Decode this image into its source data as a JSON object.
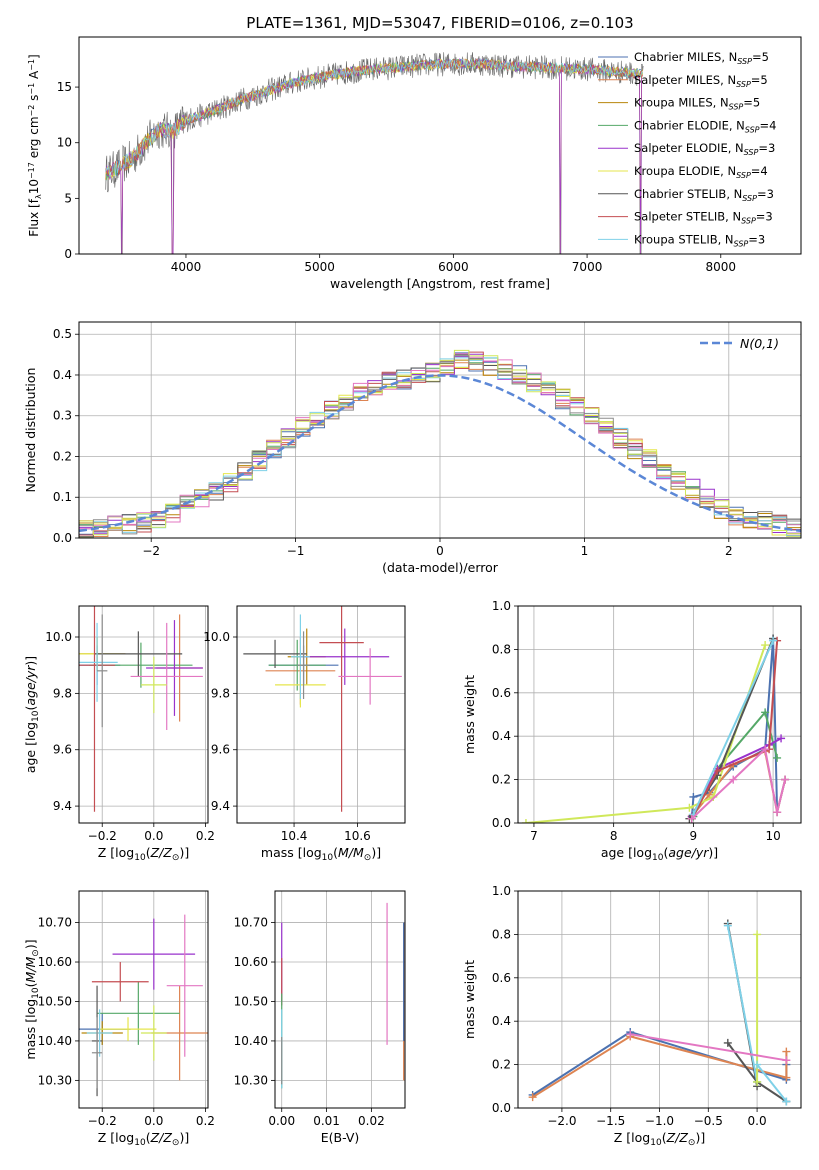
{
  "figure_title": "PLATE=1361, MJD=53047, FIBERID=0106, z=0.103",
  "colors": [
    "#4c72b0",
    "#dd8452",
    "#b8860b",
    "#55a868",
    "#9932cc",
    "#e6e64d",
    "#555555",
    "#c44e52",
    "#7fd1e8",
    "#e377c2",
    "#d0e85a",
    "#8c8c8c"
  ],
  "chart_data": [
    {
      "type": "line",
      "title": "PLATE=1361, MJD=53047, FIBERID=0106, z=0.103",
      "xlabel": "wavelength [Angstrom, rest frame]",
      "ylabel": "Flux [f_λ 10^-17 erg cm^-2 s^-1 A^-1]",
      "xlim": [
        3200,
        8600
      ],
      "ylim": [
        0,
        19.5
      ],
      "xticks": [
        4000,
        5000,
        6000,
        7000,
        8000
      ],
      "yticks": [
        0,
        5,
        10,
        15
      ],
      "legend_position": "right",
      "series": [
        {
          "name": "Chabrier MILES, N_SSP=5",
          "label_base": "Chabrier MILES, N",
          "label_n": "5",
          "color": "#4c72b0"
        },
        {
          "name": "Salpeter MILES, N_SSP=5",
          "label_base": "Salpeter MILES, N",
          "label_n": "5",
          "color": "#dd8452"
        },
        {
          "name": "Kroupa MILES, N_SSP=5",
          "label_base": "Kroupa MILES, N",
          "label_n": "5",
          "color": "#b8860b"
        },
        {
          "name": "Chabrier ELODIE, N_SSP=4",
          "label_base": "Chabrier ELODIE, N",
          "label_n": "4",
          "color": "#55a868"
        },
        {
          "name": "Salpeter ELODIE, N_SSP=3",
          "label_base": "Salpeter ELODIE, N",
          "label_n": "3",
          "color": "#9932cc"
        },
        {
          "name": "Kroupa ELODIE, N_SSP=4",
          "label_base": "Kroupa ELODIE, N",
          "label_n": "4",
          "color": "#e6e64d"
        },
        {
          "name": "Chabrier STELIB, N_SSP=3",
          "label_base": "Chabrier STELIB, N",
          "label_n": "3",
          "color": "#555555"
        },
        {
          "name": "Salpeter STELIB, N_SSP=3",
          "label_base": "Salpeter STELIB, N",
          "label_n": "3",
          "color": "#c44e52"
        },
        {
          "name": "Kroupa STELIB, N_SSP=3",
          "label_base": "Kroupa STELIB, N",
          "label_n": "3",
          "color": "#7fd1e8"
        }
      ],
      "spectrum_envelope": {
        "x": [
          3400,
          3500,
          3600,
          3700,
          3800,
          3900,
          4000,
          4200,
          4400,
          4600,
          4800,
          5000,
          5200,
          5400,
          5600,
          5800,
          6000,
          6200,
          6400,
          6600,
          6800,
          7000,
          7200,
          7400
        ],
        "y": [
          7.2,
          7.8,
          8.6,
          10.0,
          11.2,
          11.0,
          12.0,
          12.8,
          13.8,
          14.6,
          15.4,
          15.9,
          16.3,
          16.6,
          16.8,
          17.0,
          17.1,
          17.1,
          16.9,
          16.8,
          16.7,
          16.6,
          16.4,
          16.2
        ]
      },
      "dropouts": [
        3520,
        3900,
        6800,
        7400
      ]
    },
    {
      "type": "line",
      "subtype": "step-histogram",
      "xlabel": "(data-model)/error",
      "ylabel": "Normed distribution",
      "xlim": [
        -2.5,
        2.5
      ],
      "ylim": [
        0,
        0.53
      ],
      "xticks": [
        -2,
        -1,
        0,
        1,
        2
      ],
      "yticks": [
        0.0,
        0.1,
        0.2,
        0.3,
        0.4,
        0.5
      ],
      "grid": true,
      "legend_position": "top-right",
      "bin_width": 0.1,
      "series": [
        {
          "name": "N(0,1)",
          "style": "dashed",
          "color": "#5b87d6",
          "kind": "gaussian",
          "mean": 0,
          "sigma": 1
        }
      ],
      "histogram_base_profile": {
        "x": [
          -2.5,
          -2.0,
          -1.5,
          -1.0,
          -0.5,
          0.0,
          0.15,
          0.5,
          1.0,
          1.5,
          2.0,
          2.5
        ],
        "y": [
          0.02,
          0.04,
          0.12,
          0.26,
          0.37,
          0.41,
          0.44,
          0.41,
          0.31,
          0.18,
          0.06,
          0.02
        ]
      }
    },
    {
      "type": "scatter",
      "subtype": "errorbar",
      "xlabel": "Z [log10(Z/Z⊙)]",
      "ylabel": "age [log10(age/yr)]",
      "xlim": [
        -0.29,
        0.21
      ],
      "ylim": [
        9.34,
        10.11
      ],
      "xticks": [
        -0.2,
        0.0,
        0.2
      ],
      "yticks": [
        9.4,
        9.6,
        9.8,
        10.0
      ],
      "grid": true,
      "points": [
        {
          "x": -0.22,
          "y": 9.9,
          "xerr": 0.09,
          "yerr": 0.07,
          "color": "#4c72b0"
        },
        {
          "x": 0.1,
          "y": 9.89,
          "xerr": 0.09,
          "yerr": 0.19,
          "color": "#dd8452"
        },
        {
          "x": -0.22,
          "y": 9.94,
          "xerr": 0.11,
          "yerr": 0.06,
          "color": "#b8860b"
        },
        {
          "x": -0.05,
          "y": 9.9,
          "xerr": 0.2,
          "yerr": 0.08,
          "color": "#55a868"
        },
        {
          "x": 0.08,
          "y": 9.89,
          "xerr": 0.11,
          "yerr": 0.17,
          "color": "#9932cc"
        },
        {
          "x": -0.22,
          "y": 9.94,
          "xerr": 0.09,
          "yerr": 0.06,
          "color": "#e6e64d"
        },
        {
          "x": -0.06,
          "y": 9.94,
          "xerr": 0.17,
          "yerr": 0.08,
          "color": "#555555"
        },
        {
          "x": -0.23,
          "y": 9.9,
          "xerr": 0.08,
          "yerr": 0.52,
          "color": "#c44e52"
        },
        {
          "x": -0.22,
          "y": 9.91,
          "xerr": 0.08,
          "yerr": 0.14,
          "color": "#7fd1e8"
        },
        {
          "x": 0.05,
          "y": 9.86,
          "xerr": 0.14,
          "yerr": 0.19,
          "color": "#e377c2"
        },
        {
          "x": 0.0,
          "y": 9.83,
          "xerr": 0.05,
          "yerr": 0.1,
          "color": "#d0e85a"
        },
        {
          "x": -0.2,
          "y": 9.88,
          "xerr": 0.02,
          "yerr": 0.2,
          "color": "#8c8c8c"
        }
      ]
    },
    {
      "type": "scatter",
      "subtype": "errorbar",
      "xlabel": "mass [log10(M/M⊙)]",
      "ylabel": "",
      "xlim": [
        10.22,
        10.75
      ],
      "ylim": [
        9.34,
        10.11
      ],
      "xticks": [
        10.4,
        10.6
      ],
      "yticks": [
        9.4,
        9.6,
        9.8,
        10.0
      ],
      "grid": true,
      "points": [
        {
          "x": 10.43,
          "y": 9.9,
          "xerr": 0.11,
          "yerr": 0.07,
          "color": "#4c72b0"
        },
        {
          "x": 10.42,
          "y": 9.88,
          "xerr": 0.11,
          "yerr": 0.12,
          "color": "#dd8452"
        },
        {
          "x": 10.44,
          "y": 9.93,
          "xerr": 0.06,
          "yerr": 0.1,
          "color": "#b8860b"
        },
        {
          "x": 10.41,
          "y": 9.9,
          "xerr": 0.09,
          "yerr": 0.09,
          "color": "#55a868"
        },
        {
          "x": 10.56,
          "y": 9.93,
          "xerr": 0.14,
          "yerr": 0.1,
          "color": "#9932cc"
        },
        {
          "x": 10.42,
          "y": 9.83,
          "xerr": 0.08,
          "yerr": 0.08,
          "color": "#e6e64d"
        },
        {
          "x": 10.34,
          "y": 9.94,
          "xerr": 0.1,
          "yerr": 0.05,
          "color": "#555555"
        },
        {
          "x": 10.55,
          "y": 9.98,
          "xerr": 0.07,
          "yerr": 0.6,
          "color": "#c44e52"
        },
        {
          "x": 10.42,
          "y": 9.93,
          "xerr": 0.03,
          "yerr": 0.15,
          "color": "#7fd1e8"
        },
        {
          "x": 10.64,
          "y": 9.86,
          "xerr": 0.1,
          "yerr": 0.1,
          "color": "#e377c2"
        },
        {
          "x": 10.43,
          "y": 9.9,
          "xerr": 0.02,
          "yerr": 0.12,
          "color": "#8c8c8c"
        }
      ]
    },
    {
      "type": "line",
      "xlabel": "age [log10(age/yr)]",
      "ylabel": "mass weight",
      "xlim": [
        6.8,
        10.35
      ],
      "ylim": [
        0,
        1
      ],
      "xticks": [
        7,
        8,
        9,
        10
      ],
      "yticks": [
        0.0,
        0.2,
        0.4,
        0.6,
        0.8,
        1.0
      ],
      "grid": true,
      "series": [
        {
          "x": [
            8.98,
            9.0,
            9.2,
            9.5,
            9.9,
            10.0,
            10.05,
            10.15
          ],
          "y": [
            0.02,
            0.12,
            0.14,
            0.26,
            0.34,
            0.85,
            0.05,
            0.2
          ],
          "color": "#4c72b0"
        },
        {
          "x": [
            8.98,
            9.2,
            9.5,
            9.9,
            10.05,
            10.15
          ],
          "y": [
            0.03,
            0.13,
            0.27,
            0.33,
            0.05,
            0.2
          ],
          "color": "#dd8452"
        },
        {
          "x": [
            9.0,
            9.3,
            9.9,
            10.05
          ],
          "y": [
            0.03,
            0.25,
            0.51,
            0.3
          ],
          "color": "#55a868"
        },
        {
          "x": [
            8.98,
            9.3,
            9.95,
            10.1
          ],
          "y": [
            0.03,
            0.25,
            0.36,
            0.39
          ],
          "color": "#9932cc"
        },
        {
          "x": [
            6.9,
            8.95,
            9.25,
            9.9
          ],
          "y": [
            0.0,
            0.07,
            0.12,
            0.82
          ],
          "color": "#d0e85a"
        },
        {
          "x": [
            8.95,
            9.3,
            10.0
          ],
          "y": [
            0.02,
            0.22,
            0.85
          ],
          "color": "#555555"
        },
        {
          "x": [
            8.98,
            9.3,
            9.95,
            10.05
          ],
          "y": [
            0.02,
            0.24,
            0.34,
            0.84
          ],
          "color": "#c44e52"
        },
        {
          "x": [
            9.0,
            10.0
          ],
          "y": [
            0.04,
            0.84
          ],
          "color": "#7fd1e8"
        },
        {
          "x": [
            8.98,
            9.5,
            9.9,
            10.05,
            10.15
          ],
          "y": [
            0.02,
            0.2,
            0.34,
            0.05,
            0.2
          ],
          "color": "#e377c2"
        }
      ]
    },
    {
      "type": "scatter",
      "subtype": "errorbar",
      "xlabel": "Z [log10(Z/Z⊙)]",
      "ylabel": "mass [log10(M/M⊙)]",
      "xlim": [
        -0.29,
        0.21
      ],
      "ylim": [
        10.23,
        10.78
      ],
      "xticks": [
        -0.2,
        0.0,
        0.2
      ],
      "yticks": [
        10.3,
        10.4,
        10.5,
        10.6,
        10.7
      ],
      "grid": true,
      "points": [
        {
          "x": -0.2,
          "y": 10.43,
          "xerr": 0.11,
          "yerr": 0.04,
          "color": "#4c72b0"
        },
        {
          "x": 0.1,
          "y": 10.42,
          "xerr": 0.11,
          "yerr": 0.12,
          "color": "#dd8452"
        },
        {
          "x": -0.2,
          "y": 10.42,
          "xerr": 0.08,
          "yerr": 0.03,
          "color": "#b8860b"
        },
        {
          "x": -0.06,
          "y": 10.47,
          "xerr": 0.16,
          "yerr": 0.08,
          "color": "#55a868"
        },
        {
          "x": 0.0,
          "y": 10.62,
          "xerr": 0.16,
          "yerr": 0.09,
          "color": "#9932cc"
        },
        {
          "x": -0.1,
          "y": 10.43,
          "xerr": 0.11,
          "yerr": 0.03,
          "color": "#e6e64d"
        },
        {
          "x": -0.22,
          "y": 10.4,
          "xerr": 0.02,
          "yerr": 0.14,
          "color": "#555555"
        },
        {
          "x": -0.13,
          "y": 10.55,
          "xerr": 0.11,
          "yerr": 0.05,
          "color": "#c44e52"
        },
        {
          "x": -0.21,
          "y": 10.42,
          "xerr": 0.05,
          "yerr": 0.06,
          "color": "#7fd1e8"
        },
        {
          "x": 0.12,
          "y": 10.54,
          "xerr": 0.07,
          "yerr": 0.18,
          "color": "#e377c2"
        },
        {
          "x": 0.0,
          "y": 10.42,
          "xerr": 0.05,
          "yerr": 0.07,
          "color": "#d0e85a"
        },
        {
          "x": -0.22,
          "y": 10.37,
          "xerr": 0.02,
          "yerr": 0.09,
          "color": "#8c8c8c"
        }
      ]
    },
    {
      "type": "scatter",
      "subtype": "errorbar",
      "xlabel": "E(B-V)",
      "ylabel": "",
      "xlim": [
        -0.0015,
        0.0275
      ],
      "ylim": [
        10.23,
        10.78
      ],
      "xticks": [
        0.0,
        0.01,
        0.02
      ],
      "yticks": [
        10.3,
        10.4,
        10.5,
        10.6,
        10.7
      ],
      "grid": true,
      "points": [
        {
          "x": 0.0,
          "y": 10.6,
          "yerr": 0.1,
          "color": "#9932cc"
        },
        {
          "x": 0.0,
          "y": 10.55,
          "yerr": 0.06,
          "color": "#c44e52"
        },
        {
          "x": 0.0,
          "y": 10.4,
          "yerr": 0.12,
          "color": "#55a868"
        },
        {
          "x": 0.0,
          "y": 10.38,
          "yerr": 0.1,
          "color": "#7fd1e8"
        },
        {
          "x": 0.0,
          "y": 10.35,
          "yerr": 0.06,
          "color": "#8c8c8c"
        },
        {
          "x": 0.0235,
          "y": 10.57,
          "yerr": 0.18,
          "color": "#e377c2"
        },
        {
          "x": 0.0272,
          "y": 10.5,
          "yerr": 0.2,
          "color": "#dd8452"
        },
        {
          "x": 0.0272,
          "y": 10.55,
          "yerr": 0.15,
          "color": "#4c72b0"
        }
      ]
    },
    {
      "type": "line",
      "xlabel": "Z [log10(Z/Z⊙)]",
      "ylabel": "mass weight",
      "xlim": [
        -2.45,
        0.45
      ],
      "ylim": [
        0,
        1
      ],
      "xticks": [
        -2.0,
        -1.5,
        -1.0,
        -0.5,
        0.0
      ],
      "yticks": [
        0.0,
        0.2,
        0.4,
        0.6,
        0.8,
        1.0
      ],
      "grid": true,
      "series": [
        {
          "x": [
            -2.3,
            -1.3,
            0.3,
            0.3
          ],
          "y": [
            0.06,
            0.35,
            0.13,
            0.2
          ],
          "color": "#4c72b0"
        },
        {
          "x": [
            -2.3,
            -1.3,
            0.3,
            0.3
          ],
          "y": [
            0.05,
            0.33,
            0.14,
            0.26
          ],
          "color": "#dd8452"
        },
        {
          "x": [
            -0.3,
            0.0,
            0.3
          ],
          "y": [
            0.3,
            0.12,
            0.03
          ],
          "color": "#555555"
        },
        {
          "x": [
            -0.3,
            0.0
          ],
          "y": [
            0.85,
            0.1
          ],
          "color": "#555555"
        },
        {
          "x": [
            -0.3,
            0.0
          ],
          "y": [
            0.84,
            0.12
          ],
          "color": "#7fd1e8"
        },
        {
          "x": [
            0.0,
            0.0
          ],
          "y": [
            0.8,
            0.12
          ],
          "color": "#d0e85a"
        },
        {
          "x": [
            -1.3,
            0.3
          ],
          "y": [
            0.34,
            0.22
          ],
          "color": "#e377c2"
        },
        {
          "x": [
            0.0,
            0.3
          ],
          "y": [
            0.2,
            0.03
          ],
          "color": "#7fd1e8"
        }
      ]
    }
  ]
}
